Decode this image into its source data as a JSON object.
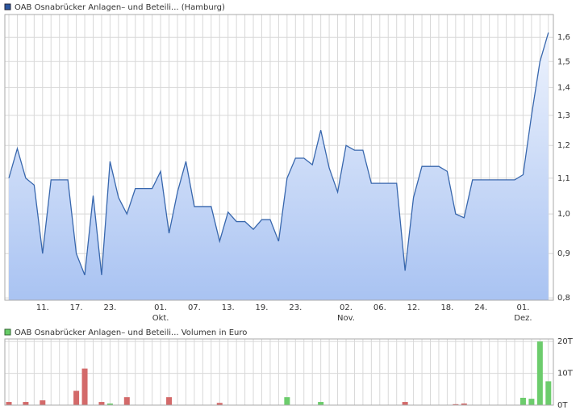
{
  "chart_data": [
    {
      "type": "line",
      "legend": "OAB Osnabrücker Anlagen– und Beteili... (Hamburg)",
      "color": "#3867ad",
      "log_scale": true,
      "grid": true,
      "categories": [
        null,
        null,
        null,
        null,
        "11.",
        null,
        null,
        null,
        "17.",
        null,
        null,
        null,
        "23.",
        null,
        null,
        null,
        null,
        null,
        "01.",
        null,
        null,
        null,
        "07.",
        null,
        null,
        null,
        "13.",
        null,
        null,
        null,
        "19.",
        null,
        null,
        null,
        "23.",
        null,
        null,
        null,
        null,
        null,
        "02.",
        null,
        null,
        null,
        "06.",
        null,
        null,
        null,
        "12.",
        null,
        null,
        null,
        "18.",
        null,
        null,
        null,
        "24.",
        null,
        null,
        null,
        null,
        "01.",
        null,
        null,
        null
      ],
      "month_labels": [
        null,
        null,
        null,
        null,
        null,
        null,
        null,
        null,
        null,
        null,
        null,
        null,
        null,
        null,
        null,
        null,
        null,
        null,
        "Okt.",
        null,
        null,
        null,
        null,
        null,
        null,
        null,
        null,
        null,
        null,
        null,
        null,
        null,
        null,
        null,
        null,
        null,
        null,
        null,
        null,
        null,
        "Nov.",
        null,
        null,
        null,
        null,
        null,
        null,
        null,
        null,
        null,
        null,
        null,
        null,
        null,
        null,
        null,
        null,
        null,
        null,
        null,
        null,
        "Dez.",
        null,
        null,
        null
      ],
      "values": [
        1.1,
        1.19,
        1.1,
        1.08,
        0.9,
        1.095,
        1.095,
        1.095,
        0.9,
        0.85,
        1.05,
        0.85,
        1.15,
        1.045,
        1.0,
        1.07,
        1.07,
        1.07,
        1.12,
        0.95,
        1.06,
        1.15,
        1.02,
        1.02,
        1.02,
        0.93,
        1.005,
        0.98,
        0.98,
        0.96,
        0.985,
        0.985,
        0.93,
        1.1,
        1.16,
        1.16,
        1.14,
        1.25,
        1.13,
        1.06,
        1.2,
        1.185,
        1.185,
        1.085,
        1.085,
        1.085,
        1.085,
        0.86,
        1.045,
        1.135,
        1.135,
        1.135,
        1.12,
        1.0,
        0.99,
        1.095,
        1.095,
        1.095,
        1.095,
        1.095,
        1.095,
        1.11,
        1.3,
        1.5,
        1.62
      ],
      "ylim": [
        0.795,
        1.7
      ],
      "yticks": [
        {
          "value": 0.8,
          "label": "0,8"
        },
        {
          "value": 0.9,
          "label": "0,9"
        },
        {
          "value": 1.0,
          "label": "1,0"
        },
        {
          "value": 1.1,
          "label": "1,1"
        },
        {
          "value": 1.2,
          "label": "1,2"
        },
        {
          "value": 1.3,
          "label": "1,3"
        },
        {
          "value": 1.4,
          "label": "1,4"
        },
        {
          "value": 1.5,
          "label": "1,5"
        },
        {
          "value": 1.6,
          "label": "1,6"
        }
      ]
    },
    {
      "type": "bar",
      "legend": "OAB Osnabrücker Anlagen– und Beteili... Volumen in Euro",
      "color": "#66cc66",
      "up_color": "#6ccc6c",
      "down_color": "#d36a6a",
      "grid": true,
      "values": [
        1,
        null,
        1,
        null,
        1.5,
        null,
        null,
        null,
        4.5,
        11.5,
        null,
        1,
        0.5,
        null,
        2.5,
        null,
        null,
        null,
        null,
        2.5,
        null,
        null,
        null,
        null,
        null,
        0.7,
        null,
        null,
        null,
        null,
        null,
        null,
        null,
        2.5,
        null,
        null,
        null,
        1,
        null,
        null,
        null,
        null,
        null,
        null,
        null,
        null,
        null,
        1,
        null,
        null,
        null,
        null,
        null,
        0.3,
        0.5,
        null,
        null,
        null,
        null,
        null,
        null,
        2.3,
        2,
        20,
        7.5
      ],
      "directions": [
        "down",
        null,
        "down",
        null,
        "down",
        null,
        null,
        null,
        "down",
        "down",
        null,
        "down",
        "up",
        null,
        "down",
        null,
        null,
        null,
        null,
        "down",
        null,
        null,
        null,
        null,
        null,
        "down",
        null,
        null,
        null,
        null,
        null,
        null,
        null,
        "up",
        null,
        null,
        null,
        "up",
        null,
        null,
        null,
        null,
        null,
        null,
        null,
        null,
        null,
        "down",
        null,
        null,
        null,
        null,
        null,
        "down",
        "down",
        null,
        null,
        null,
        null,
        null,
        null,
        "up",
        "up",
        "up",
        "up"
      ],
      "ylim": [
        0,
        20.8
      ],
      "yticks": [
        {
          "value": 0,
          "label": "0T"
        },
        {
          "value": 10,
          "label": "10T"
        },
        {
          "value": 20,
          "label": "20T"
        }
      ]
    }
  ]
}
